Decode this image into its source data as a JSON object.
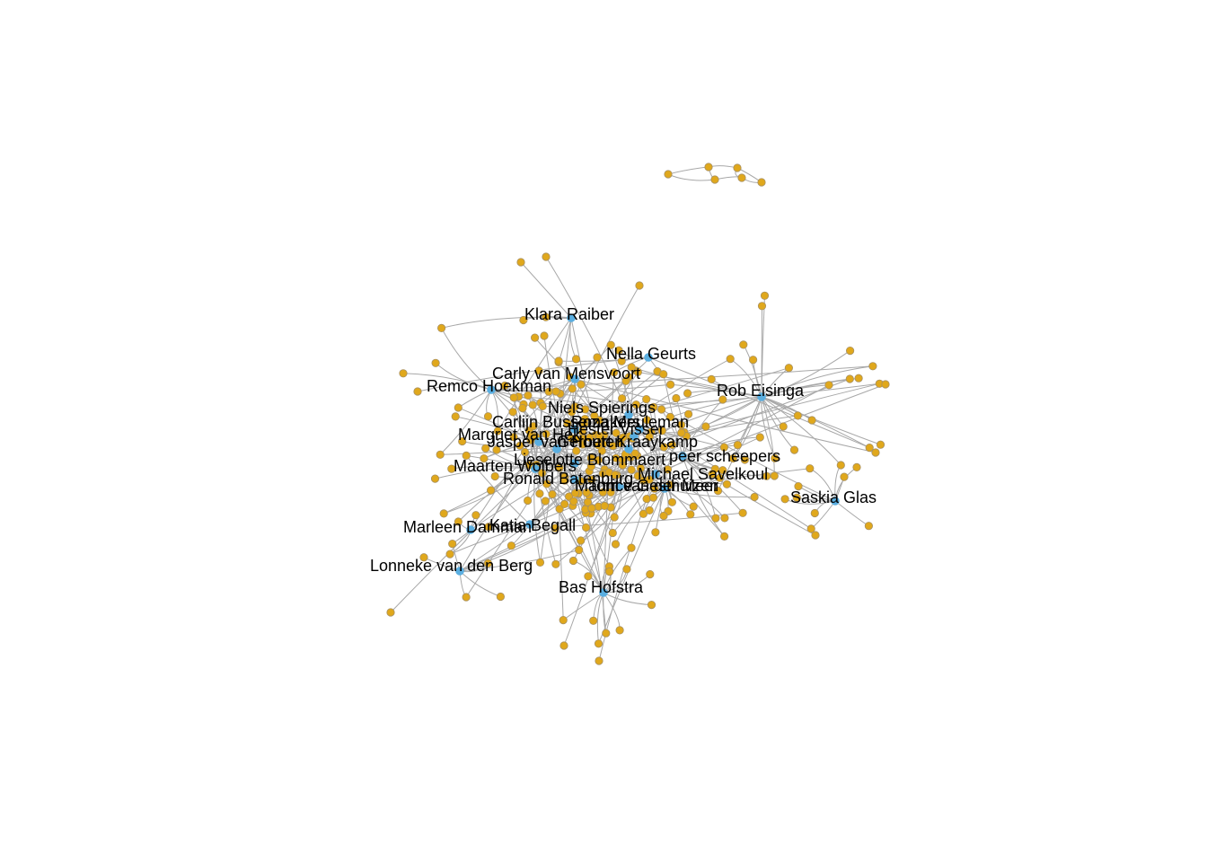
{
  "graph": {
    "type": "network",
    "colors": {
      "edge": "#a8a8a8",
      "person_node": "#5aaee0",
      "other_node": "#e0a81c"
    },
    "labeled_nodes": [
      "Klara Raiber",
      "Nella Geurts",
      "Carly van Mensvoort",
      "Remco Hoekman",
      "Rob Eisinga",
      "Niels Spierings",
      "Carlijn Bussemakers",
      "Roza Meuleman",
      "Hester Visser",
      "Margriet van Hek",
      "Jasper van Houten",
      "Gerbert Kraaykamp",
      "Lieselotte Blommaert",
      "peer scheepers",
      "Maarten Wolbers",
      "Ronald Batenburg",
      "Michael Savelkoul",
      "Maurice Gesthuizen",
      "Tom van der Meer",
      "Saskia Glas",
      "Marleen Damman",
      "Katia Begall",
      "Lonneke van den Berg",
      "Bas Hofstra"
    ]
  }
}
